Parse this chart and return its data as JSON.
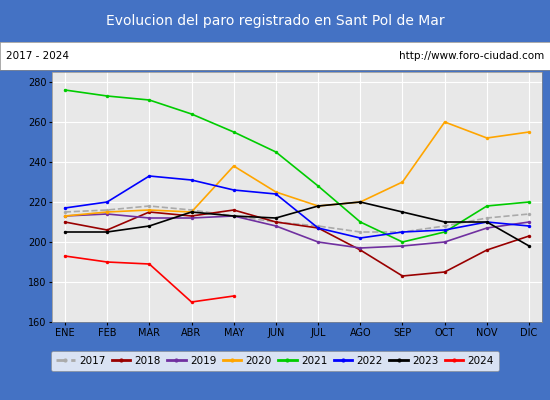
{
  "title": "Evolucion del paro registrado en Sant Pol de Mar",
  "title_bg": "#4472c4",
  "subtitle_left": "2017 - 2024",
  "subtitle_right": "http://www.foro-ciudad.com",
  "x_labels": [
    "ENE",
    "FEB",
    "MAR",
    "ABR",
    "MAY",
    "JUN",
    "JUL",
    "AGO",
    "SEP",
    "OCT",
    "NOV",
    "DIC"
  ],
  "ylim": [
    160,
    285
  ],
  "yticks": [
    160,
    180,
    200,
    220,
    240,
    260,
    280
  ],
  "series": {
    "2017": {
      "color": "#aaaaaa",
      "linestyle": "--",
      "data": [
        215,
        216,
        218,
        216,
        213,
        210,
        208,
        205,
        205,
        208,
        212,
        214
      ]
    },
    "2018": {
      "color": "#990000",
      "linestyle": "-",
      "data": [
        210,
        206,
        215,
        213,
        216,
        210,
        207,
        196,
        183,
        185,
        196,
        203
      ]
    },
    "2019": {
      "color": "#7030a0",
      "linestyle": "-",
      "data": [
        213,
        214,
        212,
        212,
        213,
        208,
        200,
        197,
        198,
        200,
        207,
        210
      ]
    },
    "2020": {
      "color": "#ffa500",
      "linestyle": "-",
      "data": [
        213,
        215,
        216,
        215,
        238,
        225,
        218,
        220,
        230,
        260,
        252,
        255
      ]
    },
    "2021": {
      "color": "#00cc00",
      "linestyle": "-",
      "data": [
        276,
        273,
        271,
        264,
        255,
        245,
        228,
        210,
        200,
        205,
        218,
        220
      ]
    },
    "2022": {
      "color": "#0000ff",
      "linestyle": "-",
      "data": [
        217,
        220,
        233,
        231,
        226,
        224,
        207,
        202,
        205,
        206,
        210,
        208
      ]
    },
    "2023": {
      "color": "#000000",
      "linestyle": "-",
      "data": [
        205,
        205,
        208,
        215,
        213,
        212,
        218,
        220,
        215,
        210,
        210,
        198
      ]
    },
    "2024": {
      "color": "#ff0000",
      "linestyle": "-",
      "data": [
        193,
        190,
        189,
        170,
        173,
        null,
        null,
        null,
        null,
        null,
        null,
        null
      ]
    }
  }
}
